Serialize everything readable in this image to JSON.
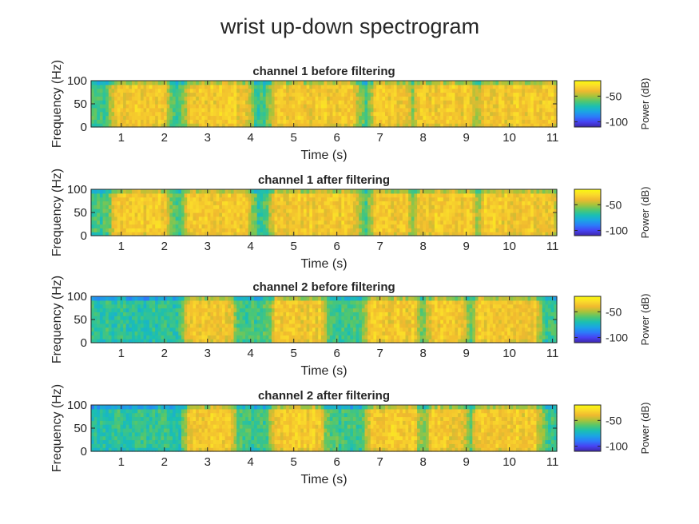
{
  "figure": {
    "title": "wrist up-down spectrogram"
  },
  "chart_data": [
    {
      "type": "heatmap",
      "title": "channel 1 before filtering",
      "xlabel": "Time (s)",
      "ylabel": "Frequency (Hz)",
      "xlim": [
        0.3,
        11.1
      ],
      "ylim": [
        0,
        100
      ],
      "xticks": [
        1,
        2,
        3,
        4,
        5,
        6,
        7,
        8,
        9,
        10,
        11
      ],
      "yticks": [
        0,
        50,
        100
      ],
      "colorbar": {
        "label": "Power (dB)",
        "ticks": [
          -50,
          -100
        ],
        "range": [
          -110,
          -20
        ]
      },
      "power_profile": [
        -42,
        -40,
        -38,
        -32,
        -30,
        -34,
        -38,
        -30,
        -28,
        -32,
        -36,
        -30,
        -28,
        -32,
        -38,
        -34,
        -30,
        -28,
        -34,
        -36,
        -30,
        -28,
        -32,
        -38,
        -34,
        -30,
        -28,
        -32
      ],
      "active_segments": [
        [
          0.9,
          2.0
        ],
        [
          2.6,
          3.9
        ],
        [
          4.6,
          6.4
        ],
        [
          6.9,
          7.6
        ],
        [
          7.9,
          9.1
        ],
        [
          9.4,
          11.0
        ]
      ]
    },
    {
      "type": "heatmap",
      "title": "channel 1 after filtering",
      "xlabel": "Time (s)",
      "ylabel": "Frequency (Hz)",
      "xlim": [
        0.3,
        11.1
      ],
      "ylim": [
        0,
        100
      ],
      "xticks": [
        1,
        2,
        3,
        4,
        5,
        6,
        7,
        8,
        9,
        10,
        11
      ],
      "yticks": [
        0,
        50,
        100
      ],
      "colorbar": {
        "label": "Power (dB)",
        "ticks": [
          -50,
          -100
        ],
        "range": [
          -110,
          -20
        ]
      },
      "active_segments": [
        [
          0.9,
          2.0
        ],
        [
          2.6,
          3.9
        ],
        [
          4.6,
          6.4
        ],
        [
          6.9,
          7.6
        ],
        [
          7.9,
          9.1
        ],
        [
          9.4,
          11.0
        ]
      ]
    },
    {
      "type": "heatmap",
      "title": "channel 2 before filtering",
      "xlabel": "Time (s)",
      "ylabel": "Frequency (Hz)",
      "xlim": [
        0.3,
        11.1
      ],
      "ylim": [
        0,
        100
      ],
      "xticks": [
        1,
        2,
        3,
        4,
        5,
        6,
        7,
        8,
        9,
        10,
        11
      ],
      "yticks": [
        0,
        50,
        100
      ],
      "colorbar": {
        "label": "Power (dB)",
        "ticks": [
          -50,
          -100
        ],
        "range": [
          -110,
          -20
        ]
      },
      "active_segments": [
        [
          2.6,
          3.5
        ],
        [
          4.6,
          5.6
        ],
        [
          6.8,
          7.8
        ],
        [
          8.2,
          8.9
        ],
        [
          9.3,
          10.6
        ]
      ]
    },
    {
      "type": "heatmap",
      "title": "channel 2 after filtering",
      "xlabel": "Time (s)",
      "ylabel": "Frequency (Hz)",
      "xlim": [
        0.3,
        11.1
      ],
      "ylim": [
        0,
        100
      ],
      "xticks": [
        1,
        2,
        3,
        4,
        5,
        6,
        7,
        8,
        9,
        10,
        11
      ],
      "yticks": [
        0,
        50,
        100
      ],
      "colorbar": {
        "label": "Power (dB)",
        "ticks": [
          -50,
          -100
        ],
        "range": [
          -110,
          -20
        ]
      },
      "active_segments": [
        [
          2.6,
          3.5
        ],
        [
          4.6,
          5.6
        ],
        [
          6.8,
          7.8
        ],
        [
          8.2,
          8.9
        ],
        [
          9.3,
          10.6
        ]
      ]
    }
  ],
  "colors": {
    "parula": [
      "#3e26a8",
      "#4743f3",
      "#2c7bfa",
      "#1ba5e3",
      "#1bbfb2",
      "#52c76e",
      "#a8c33a",
      "#f0b92f",
      "#fadb2b",
      "#f9fb0e"
    ],
    "axis": "#262626"
  }
}
